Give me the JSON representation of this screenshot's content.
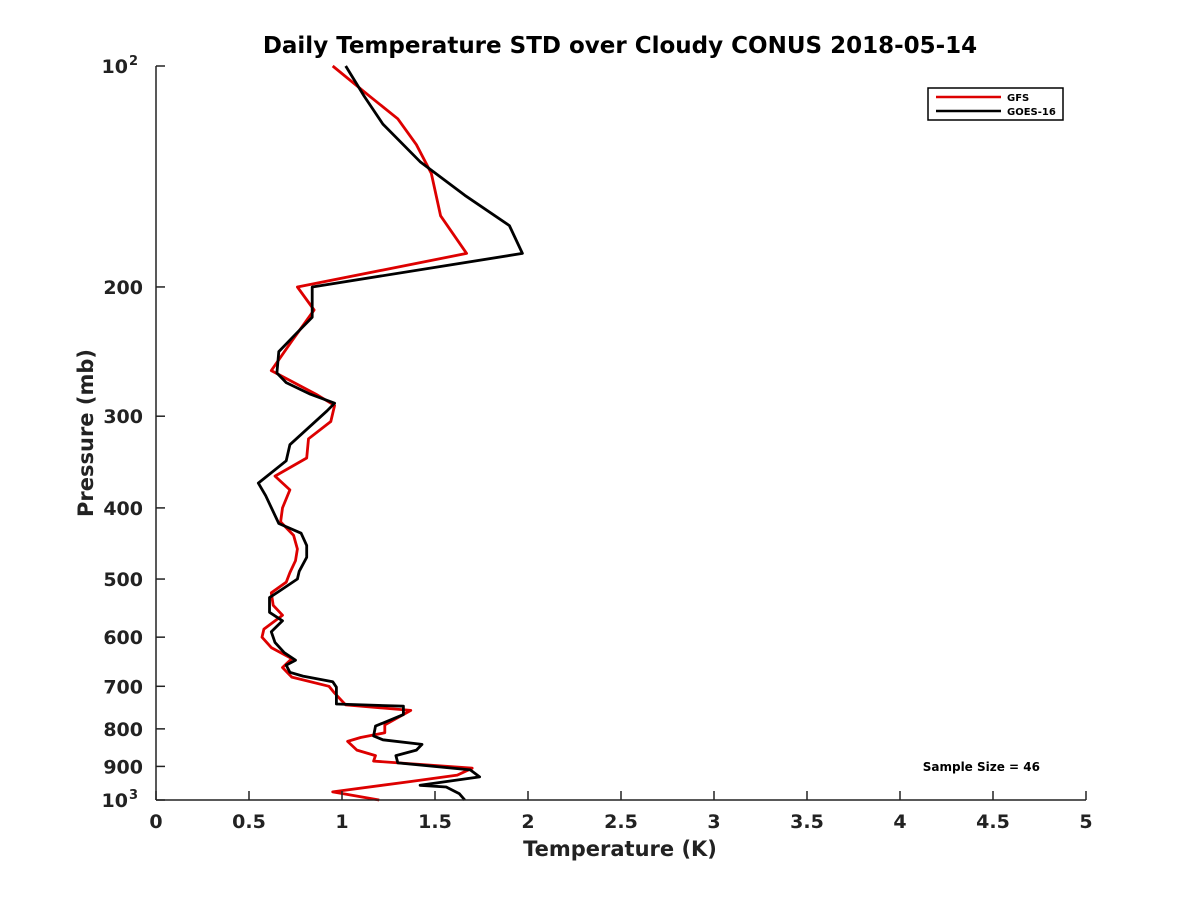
{
  "chart_data": {
    "type": "line",
    "title": "Daily Temperature STD over Cloudy CONUS 2018-05-14",
    "xlabel": "Temperature (K)",
    "ylabel": "Pressure (mb)",
    "xlim": [
      0,
      5
    ],
    "ylim": [
      100,
      1000
    ],
    "y_scale": "log",
    "y_reversed": true,
    "grid": false,
    "legend_position": "top-right",
    "x_ticks": [
      {
        "value": 0,
        "label": "0"
      },
      {
        "value": 0.5,
        "label": "0.5"
      },
      {
        "value": 1,
        "label": "1"
      },
      {
        "value": 1.5,
        "label": "1.5"
      },
      {
        "value": 2,
        "label": "2"
      },
      {
        "value": 2.5,
        "label": "2.5"
      },
      {
        "value": 3,
        "label": "3"
      },
      {
        "value": 3.5,
        "label": "3.5"
      },
      {
        "value": 4,
        "label": "4"
      },
      {
        "value": 4.5,
        "label": "4.5"
      },
      {
        "value": 5,
        "label": "5"
      }
    ],
    "y_ticks": [
      {
        "value": 100,
        "label": "10",
        "sup": "2"
      },
      {
        "value": 200,
        "label": "200"
      },
      {
        "value": 300,
        "label": "300"
      },
      {
        "value": 400,
        "label": "400"
      },
      {
        "value": 500,
        "label": "500"
      },
      {
        "value": 600,
        "label": "600"
      },
      {
        "value": 700,
        "label": "700"
      },
      {
        "value": 800,
        "label": "800"
      },
      {
        "value": 900,
        "label": "900"
      },
      {
        "value": 1000,
        "label": "10",
        "sup": "3"
      }
    ],
    "annotation": "Sample Size = 46",
    "series": [
      {
        "name": "GFS",
        "color": "#dd0000",
        "points": [
          [
            0.95,
            100
          ],
          [
            1.15,
            110
          ],
          [
            1.3,
            118
          ],
          [
            1.4,
            128
          ],
          [
            1.48,
            140
          ],
          [
            1.53,
            160
          ],
          [
            1.67,
            180
          ],
          [
            0.76,
            200
          ],
          [
            0.85,
            215
          ],
          [
            0.73,
            237
          ],
          [
            0.62,
            260
          ],
          [
            0.86,
            280
          ],
          [
            0.96,
            290
          ],
          [
            0.94,
            305
          ],
          [
            0.82,
            322
          ],
          [
            0.81,
            342
          ],
          [
            0.64,
            362
          ],
          [
            0.72,
            378
          ],
          [
            0.68,
            400
          ],
          [
            0.67,
            418
          ],
          [
            0.74,
            436
          ],
          [
            0.76,
            455
          ],
          [
            0.75,
            472
          ],
          [
            0.72,
            490
          ],
          [
            0.7,
            505
          ],
          [
            0.62,
            522
          ],
          [
            0.63,
            543
          ],
          [
            0.68,
            560
          ],
          [
            0.58,
            585
          ],
          [
            0.57,
            600
          ],
          [
            0.62,
            620
          ],
          [
            0.73,
            642
          ],
          [
            0.68,
            660
          ],
          [
            0.73,
            680
          ],
          [
            0.93,
            700
          ],
          [
            0.96,
            715
          ],
          [
            1.02,
            742
          ],
          [
            1.37,
            755
          ],
          [
            1.23,
            790
          ],
          [
            1.23,
            810
          ],
          [
            1.1,
            822
          ],
          [
            1.03,
            832
          ],
          [
            1.08,
            855
          ],
          [
            1.18,
            870
          ],
          [
            1.17,
            885
          ],
          [
            1.7,
            905
          ],
          [
            1.62,
            925
          ],
          [
            1.35,
            945
          ],
          [
            0.95,
            975
          ],
          [
            1.2,
            1000
          ]
        ]
      },
      {
        "name": "GOES-16",
        "color": "#000000",
        "points": [
          [
            1.02,
            100
          ],
          [
            1.12,
            110
          ],
          [
            1.22,
            120
          ],
          [
            1.42,
            135
          ],
          [
            1.66,
            150
          ],
          [
            1.9,
            165
          ],
          [
            1.97,
            180
          ],
          [
            0.84,
            200
          ],
          [
            0.84,
            220
          ],
          [
            0.75,
            232
          ],
          [
            0.66,
            245
          ],
          [
            0.65,
            262
          ],
          [
            0.7,
            270
          ],
          [
            0.83,
            280
          ],
          [
            0.96,
            288
          ],
          [
            0.92,
            295
          ],
          [
            0.72,
            328
          ],
          [
            0.7,
            345
          ],
          [
            0.55,
            370
          ],
          [
            0.59,
            385
          ],
          [
            0.66,
            420
          ],
          [
            0.78,
            433
          ],
          [
            0.81,
            450
          ],
          [
            0.81,
            467
          ],
          [
            0.77,
            488
          ],
          [
            0.76,
            500
          ],
          [
            0.66,
            520
          ],
          [
            0.61,
            530
          ],
          [
            0.61,
            555
          ],
          [
            0.68,
            570
          ],
          [
            0.62,
            590
          ],
          [
            0.64,
            610
          ],
          [
            0.69,
            630
          ],
          [
            0.75,
            645
          ],
          [
            0.7,
            655
          ],
          [
            0.72,
            670
          ],
          [
            0.79,
            678
          ],
          [
            0.95,
            690
          ],
          [
            0.97,
            702
          ],
          [
            0.97,
            740
          ],
          [
            1.33,
            745
          ],
          [
            1.33,
            765
          ],
          [
            1.18,
            793
          ],
          [
            1.17,
            818
          ],
          [
            1.22,
            828
          ],
          [
            1.43,
            840
          ],
          [
            1.4,
            855
          ],
          [
            1.29,
            870
          ],
          [
            1.3,
            890
          ],
          [
            1.69,
            910
          ],
          [
            1.74,
            930
          ],
          [
            1.42,
            955
          ],
          [
            1.56,
            960
          ],
          [
            1.63,
            980
          ],
          [
            1.66,
            1000
          ]
        ]
      }
    ]
  }
}
